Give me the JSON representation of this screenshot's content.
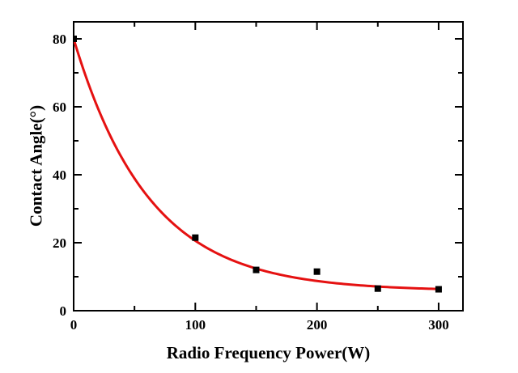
{
  "figure": {
    "background": "#ffffff",
    "text_color": "#000000",
    "spine_color": "#000000"
  },
  "chart_data": {
    "type": "scatter",
    "title": "",
    "xlabel": "Radio Frequency Power(W)",
    "ylabel": "Contact Angle(°)",
    "xlim": [
      0,
      320
    ],
    "ylim": [
      0,
      85
    ],
    "x_ticks_major": [
      0,
      100,
      200,
      300
    ],
    "x_ticks_minor": [
      50,
      150,
      250
    ],
    "y_ticks_major": [
      0,
      20,
      40,
      60,
      80
    ],
    "y_ticks_minor": [
      10,
      30,
      50,
      70
    ],
    "grid": false,
    "legend": null,
    "tick_style": "inward on all four sides, mirrored top and right",
    "series": [
      {
        "name": "measured-contact-angle-points",
        "type": "scatter",
        "marker": "square",
        "marker_size": 8,
        "color": "#000000",
        "points": [
          [
            0,
            80
          ],
          [
            100,
            21.5
          ],
          [
            150,
            12
          ],
          [
            200,
            11.5
          ],
          [
            250,
            6.5
          ],
          [
            300,
            6.3
          ]
        ]
      },
      {
        "name": "exponential-decay-fit",
        "type": "line",
        "color": "#e51111",
        "line_width": 3,
        "fit": {
          "model": "y = a + b*exp(-x/t)",
          "a": 5.8,
          "b": 74.2,
          "t": 62,
          "x_start": 0,
          "x_end": 300
        }
      }
    ]
  }
}
